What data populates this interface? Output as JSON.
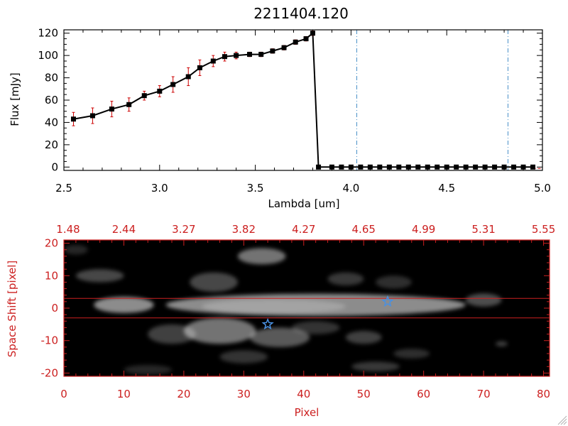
{
  "chart_data": [
    {
      "type": "line",
      "title": "2211404.120",
      "xlabel": "Lambda [um]",
      "ylabel": "Flux [mJy]",
      "xlim": [
        2.5,
        5.0
      ],
      "ylim": [
        -3,
        123
      ],
      "xticks": [
        "2.5",
        "3.0",
        "3.5",
        "4.0",
        "4.5",
        "5.0"
      ],
      "yticks": [
        "0",
        "20",
        "40",
        "60",
        "80",
        "100",
        "120"
      ],
      "series": [
        {
          "name": "flux",
          "color": "#000000",
          "error_color": "#cc0000",
          "x": [
            2.55,
            2.65,
            2.75,
            2.84,
            2.92,
            3.0,
            3.07,
            3.15,
            3.21,
            3.28,
            3.34,
            3.4,
            3.47,
            3.53,
            3.59,
            3.65,
            3.71,
            3.765,
            3.8,
            3.83,
            3.9,
            3.95,
            4.0,
            4.05,
            4.1,
            4.15,
            4.2,
            4.25,
            4.3,
            4.35,
            4.4,
            4.45,
            4.5,
            4.55,
            4.6,
            4.65,
            4.7,
            4.75,
            4.8,
            4.85,
            4.9,
            4.95
          ],
          "y": [
            43,
            46,
            52,
            56,
            64,
            68,
            74,
            81,
            89,
            95,
            99,
            100,
            101,
            101,
            104,
            107,
            112,
            115,
            120,
            0,
            0,
            0,
            0,
            0,
            0,
            0,
            0,
            0,
            0,
            0,
            0,
            0,
            0,
            0,
            0,
            0,
            0,
            0,
            0,
            0,
            0,
            0
          ],
          "yerr": [
            6,
            7,
            7,
            6,
            4,
            5,
            7,
            8,
            7,
            5,
            4,
            3,
            2,
            2,
            2,
            2,
            2,
            2,
            2,
            0,
            0,
            0,
            0,
            0,
            0,
            0,
            0,
            0,
            0,
            0,
            0,
            0,
            0,
            0,
            0,
            0,
            0,
            0,
            0,
            0,
            0,
            0
          ]
        }
      ],
      "vlines": [
        4.03,
        4.82
      ],
      "vline_color": "#4a90c8"
    },
    {
      "type": "heatmap",
      "xlabel": "Pixel",
      "ylabel": "Space Shift [pixel]",
      "xlim": [
        0,
        81
      ],
      "ylim": [
        -21,
        21
      ],
      "xticks": [
        "0",
        "10",
        "20",
        "30",
        "40",
        "50",
        "60",
        "70",
        "80"
      ],
      "yticks": [
        "-20",
        "-10",
        "0",
        "10",
        "20"
      ],
      "top_axis_ticks": [
        "1.48",
        "2.44",
        "3.27",
        "3.82",
        "4.27",
        "4.65",
        "4.99",
        "5.31",
        "5.55"
      ],
      "axis_color": "#cc2020",
      "hlines": [
        3,
        -3
      ],
      "markers": [
        {
          "x": 34,
          "y": -5,
          "symbol": "star",
          "color": "#4a90e0"
        },
        {
          "x": 54,
          "y": 2,
          "symbol": "star",
          "color": "#4a90e0"
        }
      ],
      "blobs": [
        {
          "x": 42,
          "y": 1,
          "sx": 25,
          "sy": 3.4,
          "a": 0.55
        },
        {
          "x": 10,
          "y": 1,
          "sx": 5,
          "sy": 2.5,
          "a": 0.55
        },
        {
          "x": 35,
          "y": 0.5,
          "sx": 12,
          "sy": 2.2,
          "a": 0.2
        },
        {
          "x": 70,
          "y": 2.5,
          "sx": 3,
          "sy": 2,
          "a": 0.3
        },
        {
          "x": 26,
          "y": -7,
          "sx": 6,
          "sy": 4,
          "a": 0.45
        },
        {
          "x": 36,
          "y": -9,
          "sx": 5,
          "sy": 3,
          "a": 0.35
        },
        {
          "x": 50,
          "y": -9,
          "sx": 3,
          "sy": 2,
          "a": 0.25
        },
        {
          "x": 42,
          "y": -6,
          "sx": 4,
          "sy": 2,
          "a": 0.2
        },
        {
          "x": 18,
          "y": -8,
          "sx": 4,
          "sy": 3,
          "a": 0.25
        },
        {
          "x": 33,
          "y": 16,
          "sx": 4,
          "sy": 2.5,
          "a": 0.45
        },
        {
          "x": 25,
          "y": 8,
          "sx": 4,
          "sy": 3,
          "a": 0.28
        },
        {
          "x": 6,
          "y": 10,
          "sx": 4,
          "sy": 2,
          "a": 0.28
        },
        {
          "x": 47,
          "y": 9,
          "sx": 3,
          "sy": 2,
          "a": 0.22
        },
        {
          "x": 55,
          "y": 8,
          "sx": 3,
          "sy": 2,
          "a": 0.18
        },
        {
          "x": 30,
          "y": -15,
          "sx": 4,
          "sy": 2,
          "a": 0.2
        },
        {
          "x": 52,
          "y": -18,
          "sx": 4,
          "sy": 1.5,
          "a": 0.22
        },
        {
          "x": 58,
          "y": -14,
          "sx": 3,
          "sy": 1.5,
          "a": 0.18
        },
        {
          "x": 14,
          "y": -19,
          "sx": 4,
          "sy": 1.5,
          "a": 0.15
        },
        {
          "x": 73,
          "y": -11,
          "sx": 1,
          "sy": 0.8,
          "a": 0.25
        },
        {
          "x": 2,
          "y": 18,
          "sx": 2,
          "sy": 1.5,
          "a": 0.15
        }
      ]
    }
  ]
}
